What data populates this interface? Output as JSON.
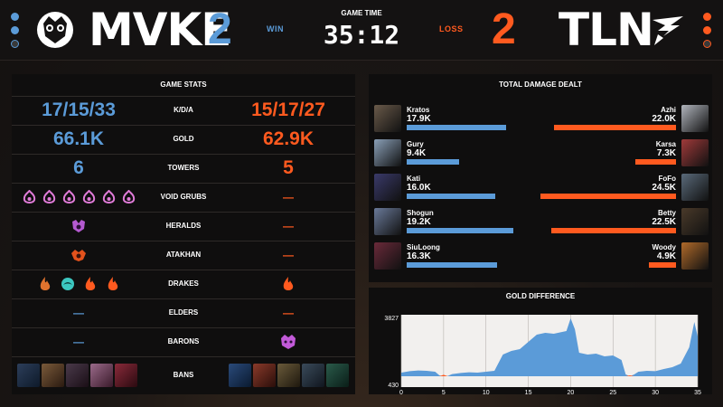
{
  "colors": {
    "blue": "#5b9bd8",
    "orange": "#ff5a1f"
  },
  "header": {
    "team_left": {
      "name": "MVKE",
      "score": "2",
      "result": "WIN",
      "logo_icon": "owl-logo-icon"
    },
    "team_right": {
      "name": "TLN",
      "score": "2",
      "result": "LOSS",
      "logo_icon": "talon-logo-icon"
    },
    "game_time_label": "GAME TIME",
    "game_time": "35:12"
  },
  "game_stats": {
    "title": "GAME STATS",
    "rows": [
      {
        "label": "K/D/A",
        "left": "17/15/33",
        "right": "15/17/27"
      },
      {
        "label": "GOLD",
        "left": "66.1K",
        "right": "62.9K"
      },
      {
        "label": "TOWERS",
        "left": "6",
        "right": "5"
      },
      {
        "label": "VOID GRUBS",
        "left_count": 6,
        "right": "—"
      },
      {
        "label": "HERALDS",
        "left_count": 1,
        "right": "—"
      },
      {
        "label": "ATAKHAN",
        "left_count": 1,
        "right": "—"
      },
      {
        "label": "DRAKES",
        "left_icons": [
          "infernal-drake-icon",
          "ocean-drake-icon",
          "infernal-drake-icon",
          "infernal-drake-icon"
        ],
        "right_icons": [
          "infernal-drake-icon"
        ]
      },
      {
        "label": "ELDERS",
        "left": "—",
        "right": "—"
      },
      {
        "label": "BARONS",
        "left": "—",
        "right_count": 1
      },
      {
        "label": "BANS",
        "left_count": 5,
        "right_count": 5
      }
    ]
  },
  "damage": {
    "title": "TOTAL DAMAGE DEALT",
    "max": 24.5,
    "left": [
      {
        "name": "Kratos",
        "dmg": "17.9K",
        "value": 17.9
      },
      {
        "name": "Gury",
        "dmg": "9.4K",
        "value": 9.4
      },
      {
        "name": "Kati",
        "dmg": "16.0K",
        "value": 16.0
      },
      {
        "name": "Shogun",
        "dmg": "19.2K",
        "value": 19.2
      },
      {
        "name": "SiuLoong",
        "dmg": "16.3K",
        "value": 16.3
      }
    ],
    "right": [
      {
        "name": "Azhi",
        "dmg": "22.0K",
        "value": 22.0
      },
      {
        "name": "Karsa",
        "dmg": "7.3K",
        "value": 7.3
      },
      {
        "name": "FoFo",
        "dmg": "24.5K",
        "value": 24.5
      },
      {
        "name": "Betty",
        "dmg": "22.5K",
        "value": 22.5
      },
      {
        "name": "Woody",
        "dmg": "4.9K",
        "value": 4.9
      }
    ]
  },
  "gold_diff": {
    "title": "GOLD DIFFERENCE",
    "y_top": "3827",
    "y_bottom": "430",
    "x_ticks": [
      "0",
      "5",
      "10",
      "15",
      "20",
      "25",
      "30",
      "35"
    ],
    "xmax": 35,
    "points": [
      [
        0,
        0.2
      ],
      [
        1,
        0.28
      ],
      [
        2,
        0.32
      ],
      [
        3,
        0.3
      ],
      [
        4,
        0.25
      ],
      [
        4.5,
        0.05
      ],
      [
        5,
        -0.08
      ],
      [
        5.5,
        0.02
      ],
      [
        6,
        0.12
      ],
      [
        7,
        0.18
      ],
      [
        8,
        0.22
      ],
      [
        9,
        0.2
      ],
      [
        10,
        0.25
      ],
      [
        11,
        0.3
      ],
      [
        11.5,
        0.75
      ],
      [
        12,
        1.2
      ],
      [
        13,
        1.4
      ],
      [
        14,
        1.5
      ],
      [
        15,
        1.9
      ],
      [
        16,
        2.3
      ],
      [
        17,
        2.4
      ],
      [
        18,
        2.35
      ],
      [
        19,
        2.45
      ],
      [
        19.5,
        2.5
      ],
      [
        20,
        3.2
      ],
      [
        20.5,
        2.6
      ],
      [
        21,
        1.3
      ],
      [
        22,
        1.2
      ],
      [
        23,
        1.25
      ],
      [
        24,
        1.1
      ],
      [
        25,
        1.15
      ],
      [
        26,
        0.9
      ],
      [
        26.5,
        0.1
      ],
      [
        27,
        -0.05
      ],
      [
        27.5,
        0.1
      ],
      [
        28,
        0.25
      ],
      [
        29,
        0.3
      ],
      [
        30,
        0.28
      ],
      [
        31,
        0.4
      ],
      [
        32,
        0.5
      ],
      [
        33,
        0.7
      ],
      [
        34,
        1.6
      ],
      [
        34.6,
        3.0
      ],
      [
        35,
        2.2
      ]
    ]
  }
}
